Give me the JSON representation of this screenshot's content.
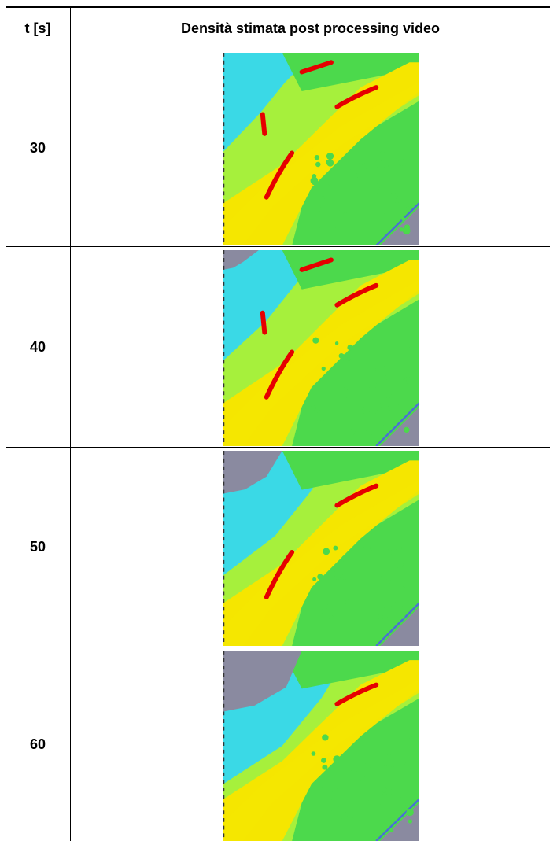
{
  "table": {
    "header": {
      "col_time": "t [s]",
      "col_density": "Densità stimata post processing video"
    },
    "rows": [
      {
        "t": "30",
        "image": "density-map-30s",
        "hot_spots": 4,
        "void_level": 0.05
      },
      {
        "t": "40",
        "image": "density-map-40s",
        "hot_spots": 4,
        "void_level": 0.25
      },
      {
        "t": "50",
        "image": "density-map-50s",
        "hot_spots": 2,
        "void_level": 0.55
      },
      {
        "t": "60",
        "image": "density-map-60s",
        "hot_spots": 1,
        "void_level": 0.8
      }
    ]
  },
  "palette": {
    "void": "#8a8aa0",
    "low": "#3ad9e6",
    "medium_low": "#4cd94c",
    "medium": "#a6f03c",
    "high": "#f5e600",
    "peak": "#e60000",
    "edge": "#4a6fd6"
  }
}
